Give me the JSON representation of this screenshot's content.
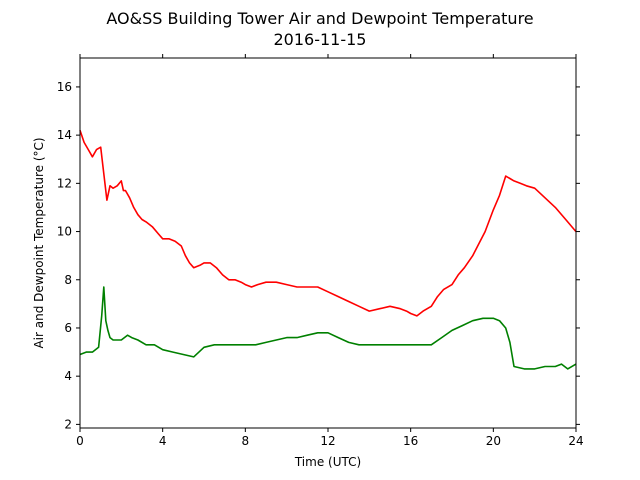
{
  "chart_data": {
    "type": "line",
    "title": "AO&SS Building Tower Air and Dewpoint Temperature",
    "subtitle": "2016-11-15",
    "xlabel": "Time (UTC)",
    "ylabel": "Air and Dewpoint Temperature (°C)",
    "xlim": [
      0,
      24
    ],
    "ylim": [
      1.85,
      17.2
    ],
    "xticks": [
      0,
      4,
      8,
      12,
      16,
      20,
      24
    ],
    "yticks": [
      2,
      4,
      6,
      8,
      10,
      12,
      14,
      16
    ],
    "grid": false,
    "series": [
      {
        "color": "#ff0000",
        "x": [
          0,
          0.2,
          0.4,
          0.6,
          0.8,
          1.0,
          1.15,
          1.3,
          1.45,
          1.6,
          1.8,
          2.0,
          2.1,
          2.2,
          2.4,
          2.6,
          2.8,
          3.0,
          3.2,
          3.5,
          3.8,
          4.0,
          4.3,
          4.6,
          4.9,
          5.1,
          5.3,
          5.5,
          5.8,
          6.0,
          6.3,
          6.6,
          6.9,
          7.2,
          7.5,
          7.8,
          8.0,
          8.3,
          8.6,
          9.0,
          9.5,
          10.0,
          10.5,
          11.0,
          11.5,
          12.0,
          12.5,
          13.0,
          13.5,
          14.0,
          14.5,
          15.0,
          15.5,
          15.8,
          16.0,
          16.3,
          16.6,
          17.0,
          17.3,
          17.6,
          18.0,
          18.3,
          18.6,
          19.0,
          19.3,
          19.6,
          20.0,
          20.3,
          20.6,
          20.8,
          21.0,
          21.3,
          21.6,
          22.0,
          22.5,
          23.0,
          23.5,
          24.0
        ],
        "values": [
          14.2,
          13.7,
          13.4,
          13.1,
          13.4,
          13.5,
          12.4,
          11.3,
          11.9,
          11.8,
          11.9,
          12.1,
          11.7,
          11.7,
          11.4,
          11.0,
          10.7,
          10.5,
          10.4,
          10.2,
          9.9,
          9.7,
          9.7,
          9.6,
          9.4,
          9.0,
          8.7,
          8.5,
          8.6,
          8.7,
          8.7,
          8.5,
          8.2,
          8.0,
          8.0,
          7.9,
          7.8,
          7.7,
          7.8,
          7.9,
          7.9,
          7.8,
          7.7,
          7.7,
          7.7,
          7.5,
          7.3,
          7.1,
          6.9,
          6.7,
          6.8,
          6.9,
          6.8,
          6.7,
          6.6,
          6.5,
          6.7,
          6.9,
          7.3,
          7.6,
          7.8,
          8.2,
          8.5,
          9.0,
          9.5,
          10.0,
          10.9,
          11.5,
          12.3,
          12.2,
          12.1,
          12.0,
          11.9,
          11.8,
          11.4,
          11.0,
          10.5,
          10.0
        ]
      },
      {
        "color": "#008000",
        "x": [
          0,
          0.3,
          0.6,
          0.9,
          1.05,
          1.15,
          1.25,
          1.35,
          1.45,
          1.6,
          1.8,
          2.0,
          2.15,
          2.3,
          2.5,
          2.8,
          3.2,
          3.6,
          4.0,
          4.5,
          5.0,
          5.5,
          6.0,
          6.5,
          7.0,
          7.5,
          8.0,
          8.5,
          9.0,
          9.5,
          10.0,
          10.5,
          11.0,
          11.5,
          12.0,
          12.5,
          13.0,
          13.5,
          14.0,
          14.5,
          15.0,
          15.5,
          16.0,
          16.5,
          17.0,
          17.5,
          18.0,
          18.5,
          19.0,
          19.5,
          20.0,
          20.3,
          20.6,
          20.8,
          21.0,
          21.5,
          22.0,
          22.5,
          23.0,
          23.3,
          23.6,
          24.0
        ],
        "values": [
          4.9,
          5.0,
          5.0,
          5.2,
          6.5,
          7.7,
          6.3,
          5.9,
          5.6,
          5.5,
          5.5,
          5.5,
          5.6,
          5.7,
          5.6,
          5.5,
          5.3,
          5.3,
          5.1,
          5.0,
          4.9,
          4.8,
          5.2,
          5.3,
          5.3,
          5.3,
          5.3,
          5.3,
          5.4,
          5.5,
          5.6,
          5.6,
          5.7,
          5.8,
          5.8,
          5.6,
          5.4,
          5.3,
          5.3,
          5.3,
          5.3,
          5.3,
          5.3,
          5.3,
          5.3,
          5.6,
          5.9,
          6.1,
          6.3,
          6.4,
          6.4,
          6.3,
          6.0,
          5.4,
          4.4,
          4.3,
          4.3,
          4.4,
          4.4,
          4.5,
          4.3,
          4.5
        ]
      }
    ]
  }
}
